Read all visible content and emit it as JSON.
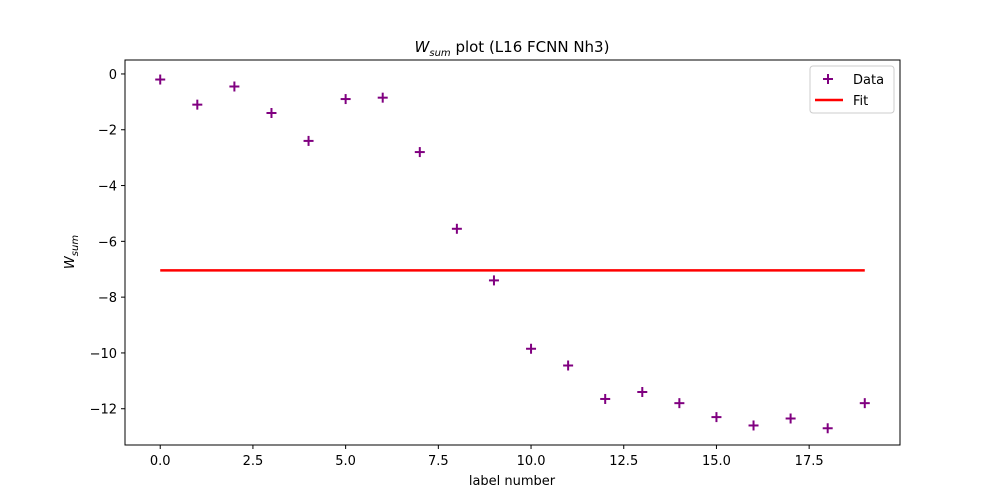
{
  "chart_data": {
    "type": "scatter",
    "title": {
      "main": "W",
      "sub": "sum",
      "rest": " plot (L16 FCNN Nh3)"
    },
    "xlabel": "label number",
    "ylabel": {
      "main": "W",
      "sub": "sum"
    },
    "xlim": [
      -0.95,
      19.95
    ],
    "ylim": [
      -13.3,
      0.5
    ],
    "xticks": [
      0.0,
      2.5,
      5.0,
      7.5,
      10.0,
      12.5,
      15.0,
      17.5
    ],
    "xtick_labels": [
      "0.0",
      "2.5",
      "5.0",
      "7.5",
      "10.0",
      "12.5",
      "15.0",
      "17.5"
    ],
    "yticks": [
      0,
      -2,
      -4,
      -6,
      -8,
      -10,
      -12
    ],
    "ytick_labels": [
      "0",
      "−2",
      "−4",
      "−6",
      "−8",
      "−10",
      "−12"
    ],
    "grid": false,
    "legend_position": "top-right",
    "series": [
      {
        "name": "Data",
        "kind": "scatter",
        "marker": "plus",
        "color": "#800080",
        "x": [
          0,
          1,
          2,
          3,
          4,
          5,
          6,
          7,
          8,
          9,
          10,
          11,
          12,
          13,
          14,
          15,
          16,
          17,
          18,
          19
        ],
        "y": [
          -0.2,
          -1.1,
          -0.45,
          -1.4,
          -2.4,
          -0.9,
          -0.85,
          -2.8,
          -5.55,
          -7.4,
          -9.85,
          -10.45,
          -11.65,
          -11.4,
          -11.8,
          -12.3,
          -12.6,
          -12.35,
          -12.7,
          -11.8
        ]
      },
      {
        "name": "Fit",
        "kind": "line",
        "color": "#ff0000",
        "x": [
          0,
          19
        ],
        "y": [
          -7.04,
          -7.04
        ]
      }
    ]
  }
}
